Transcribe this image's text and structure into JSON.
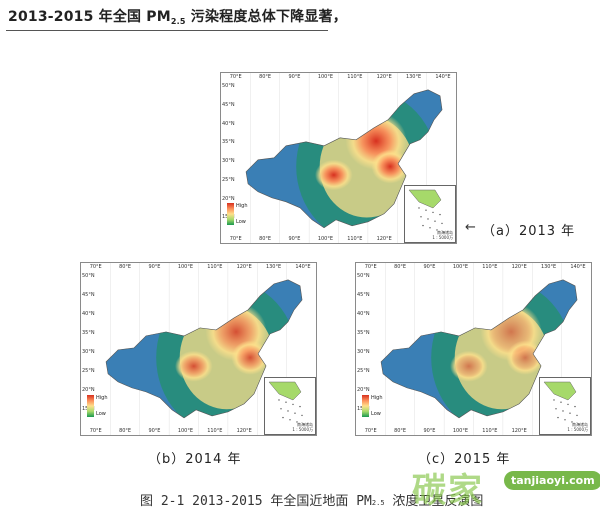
{
  "headline": {
    "prefix": "2013-2015 年全国 PM",
    "subscript": "2.5",
    "suffix": " 污染程度总体下降显著，"
  },
  "legend": {
    "high": "High",
    "low": "Low"
  },
  "inset": {
    "line1": "南海诸岛",
    "line2": "1 : 5000万"
  },
  "ticks": {
    "lon": [
      "70°E",
      "80°E",
      "90°E",
      "100°E",
      "110°E",
      "120°E",
      "130°E",
      "140°E"
    ],
    "lat": [
      "50°N",
      "45°N",
      "40°N",
      "35°N",
      "30°N",
      "25°N",
      "20°N",
      "15°N"
    ]
  },
  "maps": [
    {
      "caption": "（a）2013 年",
      "year": 2013,
      "pollution_level": "highest"
    },
    {
      "caption": "（b）2014 年",
      "year": 2014,
      "pollution_level": "high"
    },
    {
      "caption": "（c）2015 年",
      "year": 2015,
      "pollution_level": "reduced"
    }
  ],
  "figure_title": {
    "prefix": "图 2-1   2013-2015 年全国近地面 PM",
    "subscript": "2.5",
    "suffix": " 浓度卫星反演图"
  },
  "arrow": "←",
  "watermark": {
    "chinese": "碳家",
    "url": "tanjiaoyi.com"
  },
  "colors": {
    "low": "#1a9850",
    "mid": "#fee08b",
    "high": "#d7301f",
    "west": "#3a7fb5"
  }
}
